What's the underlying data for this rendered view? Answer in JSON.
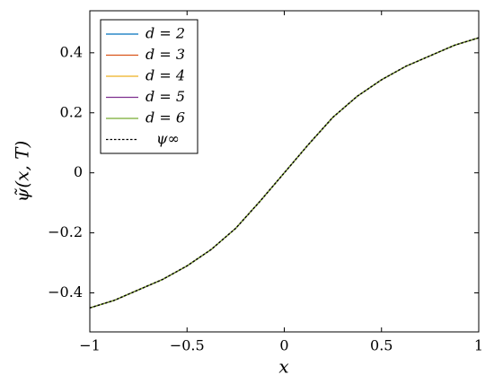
{
  "chart_data": {
    "type": "line",
    "x_label": "x",
    "y_label": "ψ̃(x, T)",
    "x": [
      -1,
      -0.875,
      -0.75,
      -0.625,
      -0.5,
      -0.375,
      -0.25,
      -0.125,
      0,
      0.125,
      0.25,
      0.375,
      0.5,
      0.625,
      0.75,
      0.875,
      1
    ],
    "series": [
      {
        "name": "d = 2",
        "color": "#0072bd",
        "values": [
          -0.45,
          -0.425,
          -0.39,
          -0.355,
          -0.31,
          -0.255,
          -0.185,
          -0.095,
          0,
          0.095,
          0.185,
          0.255,
          0.31,
          0.355,
          0.39,
          0.425,
          0.45
        ]
      },
      {
        "name": "d = 3",
        "color": "#d95319",
        "values": [
          -0.45,
          -0.425,
          -0.39,
          -0.355,
          -0.31,
          -0.255,
          -0.185,
          -0.095,
          0,
          0.095,
          0.185,
          0.255,
          0.31,
          0.355,
          0.39,
          0.425,
          0.45
        ]
      },
      {
        "name": "d = 4",
        "color": "#edb120",
        "values": [
          -0.45,
          -0.425,
          -0.39,
          -0.355,
          -0.31,
          -0.255,
          -0.185,
          -0.095,
          0,
          0.095,
          0.185,
          0.255,
          0.31,
          0.355,
          0.39,
          0.425,
          0.45
        ]
      },
      {
        "name": "d = 5",
        "color": "#7e2f8e",
        "values": [
          -0.45,
          -0.425,
          -0.39,
          -0.355,
          -0.31,
          -0.255,
          -0.185,
          -0.095,
          0,
          0.095,
          0.185,
          0.255,
          0.31,
          0.355,
          0.39,
          0.425,
          0.45
        ]
      },
      {
        "name": "d = 6",
        "color": "#77ac30",
        "values": [
          -0.45,
          -0.425,
          -0.39,
          -0.355,
          -0.31,
          -0.255,
          -0.185,
          -0.095,
          0,
          0.095,
          0.185,
          0.255,
          0.31,
          0.355,
          0.39,
          0.425,
          0.45
        ]
      },
      {
        "name": "ψ∞",
        "color": "#000000",
        "dashed": true,
        "values": [
          -0.45,
          -0.425,
          -0.39,
          -0.355,
          -0.31,
          -0.255,
          -0.185,
          -0.095,
          0,
          0.095,
          0.185,
          0.255,
          0.31,
          0.355,
          0.39,
          0.425,
          0.45
        ]
      }
    ],
    "xlim": [
      -1,
      1
    ],
    "xticks": [
      {
        "value": -1,
        "label": "−1"
      },
      {
        "value": -0.5,
        "label": "−0.5"
      },
      0,
      0.5,
      1
    ],
    "ylim": [
      -0.53,
      0.54
    ],
    "yticks": [
      {
        "value": -0.4,
        "label": "−0.4"
      },
      {
        "value": -0.2,
        "label": "−0.2"
      },
      0,
      0.2,
      0.4
    ],
    "legend": "top-left",
    "grid": false
  }
}
